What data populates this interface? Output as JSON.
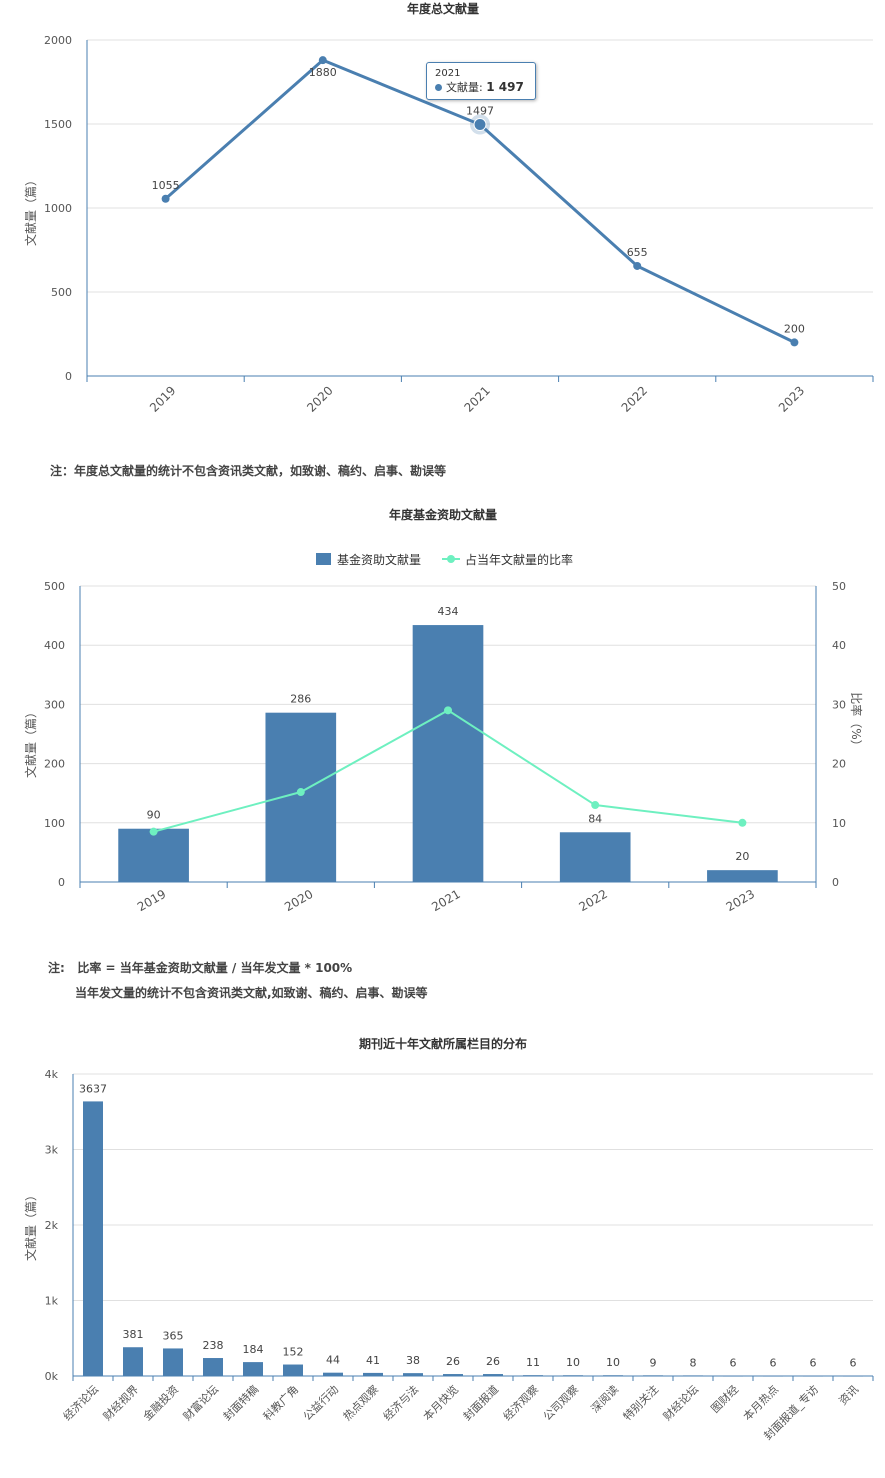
{
  "chart_data": [
    {
      "type": "line",
      "title": "年度总文献量",
      "ylabel": "文献量（篇）",
      "ylim": [
        0,
        2000
      ],
      "yticks": [
        "0",
        "500",
        "1000",
        "1500",
        "2000"
      ],
      "categories": [
        "2019",
        "2020",
        "2021",
        "2022",
        "2023"
      ],
      "series": [
        {
          "values": [
            1055,
            1880,
            1497,
            655,
            200
          ],
          "color": "#4a7fb0"
        }
      ],
      "data_labels": [
        "1055",
        "1880",
        "1497",
        "655",
        "200"
      ],
      "tooltip": {
        "title": "2021",
        "label": "文献量:",
        "value": "1 497"
      },
      "grid": true
    },
    {
      "type": "bar",
      "title": "年度基金资助文献量",
      "ylabel": "文献量（篇）",
      "y2label": "比率（%）",
      "ylim": [
        0,
        500
      ],
      "y2lim": [
        0,
        50
      ],
      "yticks": [
        "0",
        "100",
        "200",
        "300",
        "400",
        "500"
      ],
      "y2ticks": [
        "0",
        "10",
        "20",
        "30",
        "40",
        "50"
      ],
      "categories": [
        "2019",
        "2020",
        "2021",
        "2022",
        "2023"
      ],
      "series": [
        {
          "name": "基金资助文献量",
          "type": "bar",
          "values": [
            90,
            286,
            434,
            84,
            20
          ],
          "color": "#4a7fb0"
        },
        {
          "name": "占当年文献量的比率",
          "type": "line",
          "axis": "right",
          "values": [
            8.5,
            15.2,
            29,
            13,
            10
          ],
          "color": "#6ef0c0"
        }
      ],
      "data_labels": [
        "90",
        "286",
        "434",
        "84",
        "20"
      ],
      "legend": "top-center",
      "grid": true
    },
    {
      "type": "bar",
      "title": "期刊近十年文献所属栏目的分布",
      "ylabel": "文献量（篇）",
      "ylim": [
        0,
        4000
      ],
      "yticks": [
        "0k",
        "1k",
        "2k",
        "3k",
        "4k"
      ],
      "categories": [
        "经济论坛",
        "财经视界",
        "金融投资",
        "财富论坛",
        "封面特稿",
        "科教广角",
        "公益行动",
        "热点观察",
        "经济与法",
        "本月快览",
        "封面报道",
        "经济观察",
        "公司观察",
        "深阅读",
        "特别关注",
        "财经论坛",
        "图财经",
        "本月热点",
        "封面报道_专访",
        "资讯"
      ],
      "values": [
        3637,
        381,
        365,
        238,
        184,
        152,
        44,
        41,
        38,
        26,
        26,
        11,
        10,
        10,
        9,
        8,
        6,
        6,
        6,
        6
      ],
      "data_labels": [
        "3637",
        "381",
        "365",
        "238",
        "184",
        "152",
        "44",
        "41",
        "38",
        "26",
        "26",
        "11",
        "10",
        "10",
        "9",
        "8",
        "6",
        "6",
        "6",
        "6"
      ],
      "color": "#4a7fb0",
      "grid": true
    }
  ],
  "notes": {
    "note1": "注：年度总文献量的统计不包含资讯类文献，如致谢、稿约、启事、勘误等",
    "note2_line1": "注:   比率 = 当年基金资助文献量 / 当年发文量 * 100%",
    "note2_line2": "当年发文量的统计不包含资讯类文献,如致谢、稿约、启事、勘误等"
  }
}
